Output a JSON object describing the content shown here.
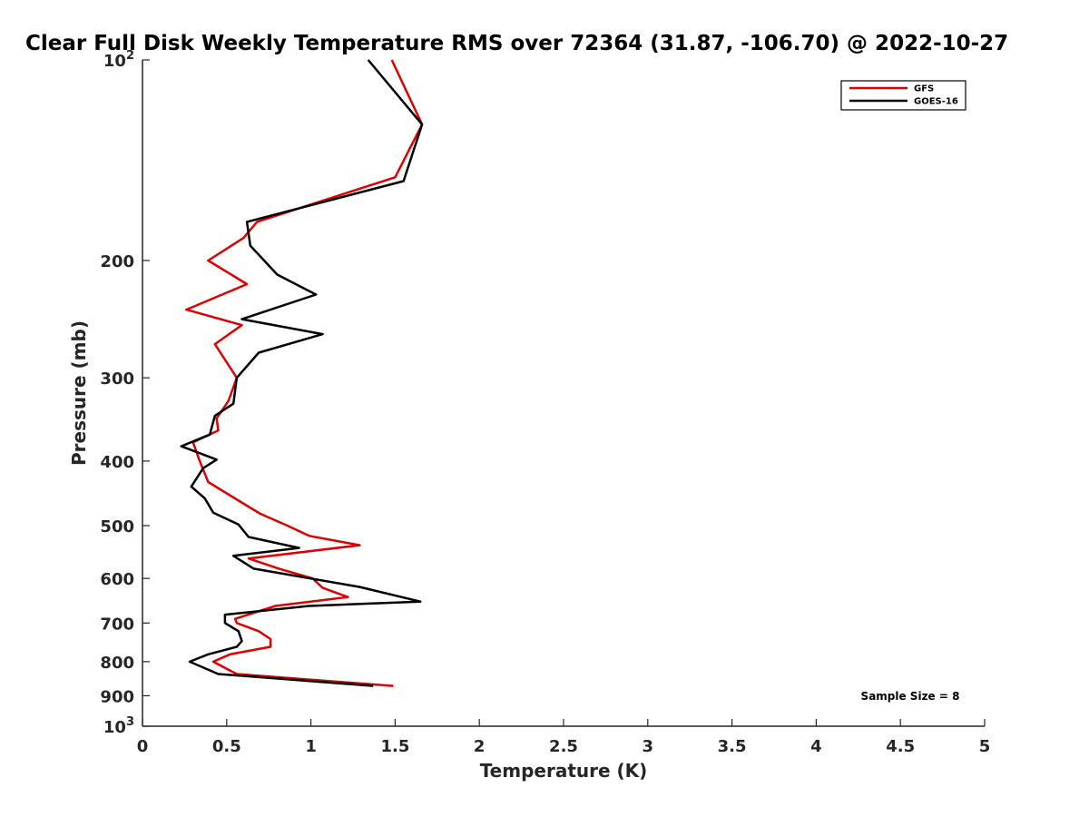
{
  "chart_data": {
    "type": "line",
    "title": "Clear Full Disk Weekly Temperature RMS over 72364 (31.87, -106.70) @ 2022-10-27",
    "xlabel": "Temperature (K)",
    "ylabel": "Pressure (mb)",
    "xlim": [
      0,
      5
    ],
    "ylim": [
      100,
      1000
    ],
    "yscale": "log",
    "y_reversed": true,
    "grid": false,
    "x_ticks": [
      "0",
      "0.5",
      "1",
      "1.5",
      "2",
      "2.5",
      "3",
      "3.5",
      "4",
      "4.5",
      "5"
    ],
    "y_ticks": [
      {
        "value": 100,
        "base": "10",
        "exp": "2"
      },
      {
        "value": 200,
        "label": "200"
      },
      {
        "value": 300,
        "label": "300"
      },
      {
        "value": 400,
        "label": "400"
      },
      {
        "value": 500,
        "label": "500"
      },
      {
        "value": 600,
        "label": "600"
      },
      {
        "value": 700,
        "label": "700"
      },
      {
        "value": 800,
        "label": "800"
      },
      {
        "value": 900,
        "label": "900"
      },
      {
        "value": 1000,
        "base": "10",
        "exp": "3"
      }
    ],
    "legend": {
      "placement": "top-right"
    },
    "annotation": "Sample Size = 8",
    "series": [
      {
        "name": "GFS",
        "color": "#e00000",
        "points": [
          [
            1.48,
            100
          ],
          [
            1.66,
            125
          ],
          [
            1.5,
            150
          ],
          [
            0.68,
            175
          ],
          [
            0.6,
            185
          ],
          [
            0.39,
            200
          ],
          [
            0.62,
            217
          ],
          [
            0.26,
            237
          ],
          [
            0.59,
            250
          ],
          [
            0.43,
            267
          ],
          [
            0.56,
            300
          ],
          [
            0.51,
            325
          ],
          [
            0.44,
            345
          ],
          [
            0.45,
            360
          ],
          [
            0.3,
            375
          ],
          [
            0.34,
            400
          ],
          [
            0.39,
            430
          ],
          [
            0.58,
            460
          ],
          [
            0.7,
            480
          ],
          [
            0.86,
            500
          ],
          [
            0.99,
            518
          ],
          [
            1.29,
            535
          ],
          [
            0.63,
            560
          ],
          [
            0.81,
            580
          ],
          [
            1.01,
            600
          ],
          [
            1.07,
            620
          ],
          [
            1.22,
            640
          ],
          [
            0.79,
            660
          ],
          [
            0.55,
            690
          ],
          [
            0.56,
            700
          ],
          [
            0.69,
            720
          ],
          [
            0.76,
            740
          ],
          [
            0.76,
            760
          ],
          [
            0.52,
            780
          ],
          [
            0.42,
            800
          ],
          [
            0.56,
            835
          ],
          [
            1.49,
            870
          ]
        ]
      },
      {
        "name": "GOES-16",
        "color": "#000000",
        "points": [
          [
            1.34,
            100
          ],
          [
            1.66,
            125
          ],
          [
            1.55,
            152
          ],
          [
            0.62,
            175
          ],
          [
            0.64,
            190
          ],
          [
            0.8,
            210
          ],
          [
            1.03,
            225
          ],
          [
            0.59,
            245
          ],
          [
            1.07,
            258
          ],
          [
            0.69,
            275
          ],
          [
            0.56,
            300
          ],
          [
            0.54,
            328
          ],
          [
            0.43,
            342
          ],
          [
            0.4,
            365
          ],
          [
            0.23,
            380
          ],
          [
            0.44,
            398
          ],
          [
            0.36,
            410
          ],
          [
            0.29,
            437
          ],
          [
            0.37,
            455
          ],
          [
            0.42,
            478
          ],
          [
            0.57,
            498
          ],
          [
            0.63,
            520
          ],
          [
            0.93,
            540
          ],
          [
            0.54,
            555
          ],
          [
            0.66,
            580
          ],
          [
            1.29,
            618
          ],
          [
            1.65,
            650
          ],
          [
            0.99,
            660
          ],
          [
            0.49,
            680
          ],
          [
            0.49,
            700
          ],
          [
            0.57,
            720
          ],
          [
            0.59,
            745
          ],
          [
            0.56,
            760
          ],
          [
            0.39,
            780
          ],
          [
            0.28,
            800
          ],
          [
            0.45,
            835
          ],
          [
            1.37,
            870
          ]
        ]
      }
    ]
  }
}
